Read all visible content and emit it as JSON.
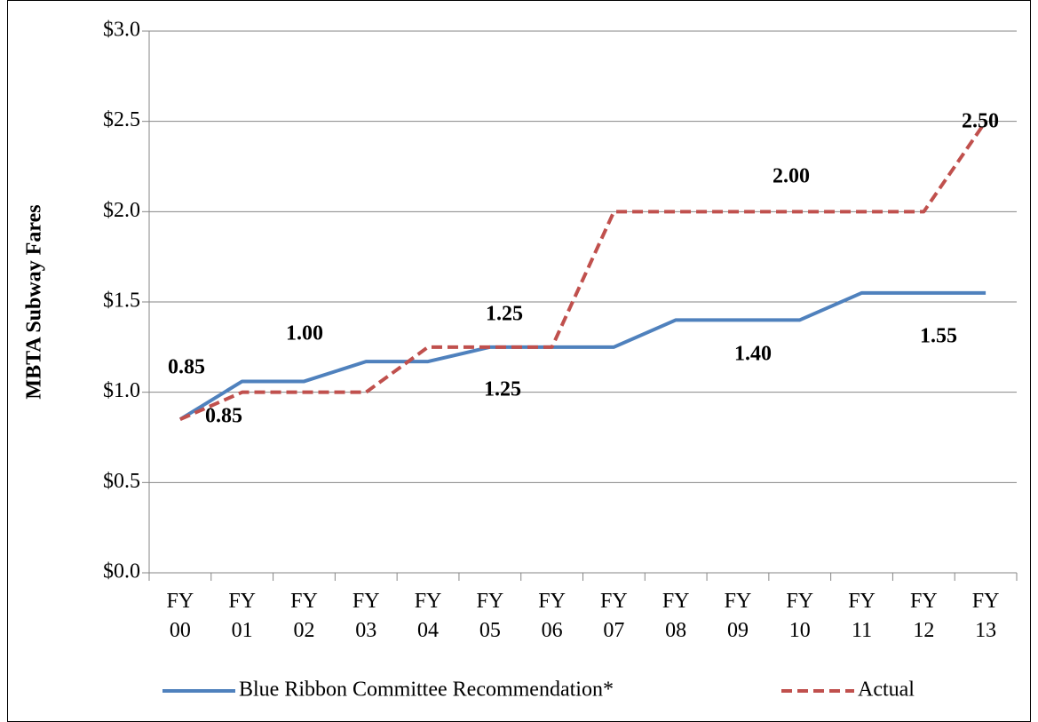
{
  "chart_data": {
    "type": "line",
    "y_axis_label": "MBTA Subway Fares",
    "categories": [
      "FY 00",
      "FY 01",
      "FY 02",
      "FY 03",
      "FY 04",
      "FY 05",
      "FY 06",
      "FY 07",
      "FY 08",
      "FY 09",
      "FY 10",
      "FY 11",
      "FY 12",
      "FY 13"
    ],
    "series": [
      {
        "name": "Blue Ribbon Committee Recommendation*",
        "color": "#4f81bd",
        "line_style": "solid",
        "values": [
          0.85,
          1.06,
          1.06,
          1.17,
          1.17,
          1.25,
          1.25,
          1.25,
          1.4,
          1.4,
          1.4,
          1.55,
          1.55,
          1.55
        ],
        "value_labels": [
          "0.85",
          null,
          null,
          null,
          null,
          "1.25",
          null,
          null,
          null,
          "1.40",
          null,
          null,
          "1.55",
          null
        ]
      },
      {
        "name": "Actual",
        "color": "#c0504d",
        "line_style": "dashed",
        "values": [
          0.85,
          1.0,
          1.0,
          1.0,
          1.25,
          1.25,
          1.25,
          2.0,
          2.0,
          2.0,
          2.0,
          2.0,
          2.0,
          2.5
        ],
        "value_labels": [
          "0.85",
          null,
          "1.00",
          null,
          null,
          "1.25",
          null,
          null,
          null,
          "2.00",
          null,
          null,
          null,
          "2.50"
        ]
      }
    ],
    "ylim": [
      0,
      3
    ],
    "yticks": [
      {
        "value": 0,
        "label": "$0.0"
      },
      {
        "value": 0.5,
        "label": "$0.5"
      },
      {
        "value": 1,
        "label": "$1.0"
      },
      {
        "value": 1.5,
        "label": "$1.5"
      },
      {
        "value": 2,
        "label": "$2.0"
      },
      {
        "value": 2.5,
        "label": "$2.5"
      },
      {
        "value": 3,
        "label": "$3.0"
      }
    ],
    "grid": true,
    "legend": "bottom"
  }
}
